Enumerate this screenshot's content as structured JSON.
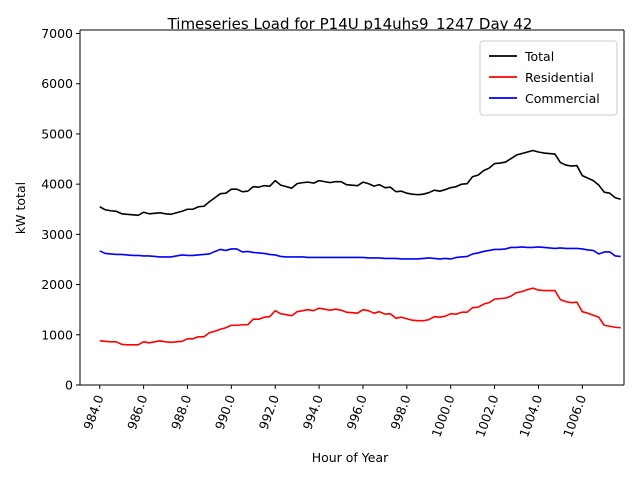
{
  "chart_data": {
    "type": "line",
    "title": "Timeseries Load for P14U p14uhs9_1247  Day 42",
    "xlabel": "Hour of Year",
    "ylabel": "kW total",
    "xlim": [
      983.1,
      1007.9
    ],
    "ylim": [
      0,
      7070
    ],
    "x_ticks": [
      984,
      986,
      988,
      990,
      992,
      994,
      996,
      998,
      1000,
      1002,
      1004,
      1006
    ],
    "x_tick_labels": [
      "984.0",
      "986.0",
      "988.0",
      "990.0",
      "992.0",
      "994.0",
      "996.0",
      "998.0",
      "1000.0",
      "1002.0",
      "1004.0",
      "1006.0"
    ],
    "y_ticks": [
      0,
      1000,
      2000,
      3000,
      4000,
      5000,
      6000,
      7000
    ],
    "y_tick_labels": [
      "0",
      "1000",
      "2000",
      "3000",
      "4000",
      "5000",
      "6000",
      "7000"
    ],
    "legend_position": "top-right",
    "x_start": 984.0,
    "x_step": 0.25,
    "series": [
      {
        "name": "Total",
        "color": "#000000",
        "values": [
          3550,
          3490,
          3470,
          3460,
          3410,
          3400,
          3390,
          3380,
          3440,
          3410,
          3420,
          3430,
          3410,
          3400,
          3430,
          3460,
          3500,
          3500,
          3550,
          3560,
          3650,
          3730,
          3810,
          3820,
          3900,
          3900,
          3850,
          3860,
          3950,
          3940,
          3970,
          3960,
          4070,
          3980,
          3950,
          3920,
          4010,
          4030,
          4040,
          4020,
          4070,
          4050,
          4030,
          4050,
          4050,
          3990,
          3980,
          3970,
          4040,
          4010,
          3960,
          3990,
          3930,
          3940,
          3850,
          3860,
          3820,
          3800,
          3790,
          3800,
          3830,
          3880,
          3860,
          3890,
          3930,
          3950,
          4000,
          4010,
          4150,
          4180,
          4270,
          4320,
          4410,
          4420,
          4440,
          4510,
          4580,
          4610,
          4640,
          4670,
          4640,
          4620,
          4610,
          4600,
          4430,
          4380,
          4360,
          4370,
          4170,
          4120,
          4070,
          3980,
          3840,
          3820,
          3730,
          3700
        ]
      },
      {
        "name": "Residential",
        "color": "#ff0000",
        "values": [
          880,
          870,
          860,
          860,
          810,
          800,
          800,
          800,
          860,
          840,
          860,
          880,
          860,
          850,
          860,
          870,
          920,
          920,
          960,
          960,
          1040,
          1070,
          1110,
          1140,
          1190,
          1190,
          1200,
          1200,
          1310,
          1310,
          1350,
          1360,
          1480,
          1420,
          1400,
          1380,
          1460,
          1480,
          1500,
          1480,
          1530,
          1510,
          1490,
          1510,
          1490,
          1450,
          1440,
          1430,
          1500,
          1480,
          1430,
          1460,
          1410,
          1420,
          1330,
          1350,
          1320,
          1290,
          1280,
          1280,
          1300,
          1360,
          1350,
          1370,
          1420,
          1410,
          1450,
          1450,
          1540,
          1550,
          1610,
          1640,
          1710,
          1720,
          1730,
          1770,
          1840,
          1860,
          1900,
          1930,
          1890,
          1880,
          1880,
          1880,
          1700,
          1660,
          1640,
          1650,
          1460,
          1430,
          1390,
          1350,
          1190,
          1170,
          1150,
          1140
        ]
      },
      {
        "name": "Commercial",
        "color": "#0000ff",
        "values": [
          2670,
          2620,
          2610,
          2600,
          2600,
          2590,
          2580,
          2580,
          2570,
          2570,
          2560,
          2550,
          2550,
          2550,
          2570,
          2590,
          2580,
          2580,
          2590,
          2600,
          2610,
          2660,
          2700,
          2680,
          2710,
          2710,
          2650,
          2660,
          2640,
          2630,
          2620,
          2600,
          2590,
          2560,
          2550,
          2550,
          2550,
          2550,
          2540,
          2540,
          2540,
          2540,
          2540,
          2540,
          2540,
          2540,
          2540,
          2540,
          2540,
          2530,
          2530,
          2530,
          2520,
          2520,
          2520,
          2510,
          2510,
          2510,
          2510,
          2520,
          2530,
          2520,
          2510,
          2520,
          2510,
          2540,
          2550,
          2560,
          2610,
          2630,
          2660,
          2680,
          2700,
          2700,
          2710,
          2740,
          2740,
          2750,
          2740,
          2740,
          2750,
          2740,
          2730,
          2720,
          2730,
          2720,
          2720,
          2720,
          2710,
          2690,
          2680,
          2610,
          2650,
          2650,
          2570,
          2560
        ]
      }
    ]
  }
}
